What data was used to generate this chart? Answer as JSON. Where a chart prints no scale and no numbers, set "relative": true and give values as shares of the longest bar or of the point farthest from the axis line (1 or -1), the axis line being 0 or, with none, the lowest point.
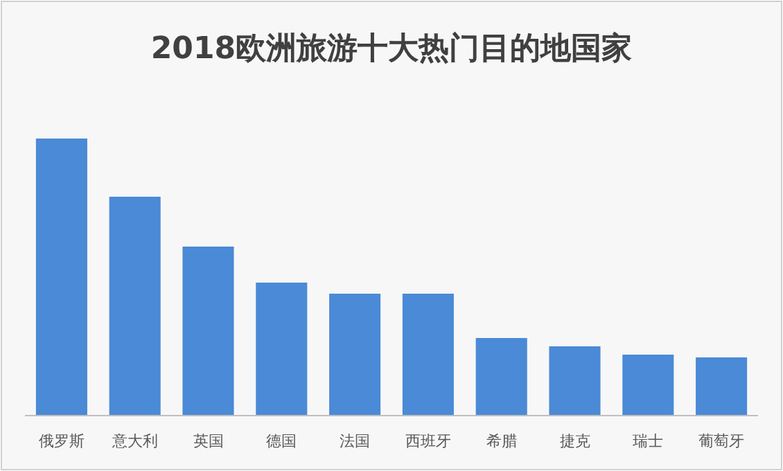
{
  "chart_data": {
    "type": "bar",
    "title": "2018欧洲旅游十大热门目的地国家",
    "relative": true,
    "categories": [
      "俄罗斯",
      "意大利",
      "英国",
      "德国",
      "法国",
      "西班牙",
      "希腊",
      "捷克",
      "瑞士",
      "葡萄牙"
    ],
    "values": [
      1,
      0.79,
      0.61,
      0.48,
      0.44,
      0.44,
      0.28,
      0.25,
      0.22,
      0.21
    ],
    "color": "#4a8ad6"
  }
}
